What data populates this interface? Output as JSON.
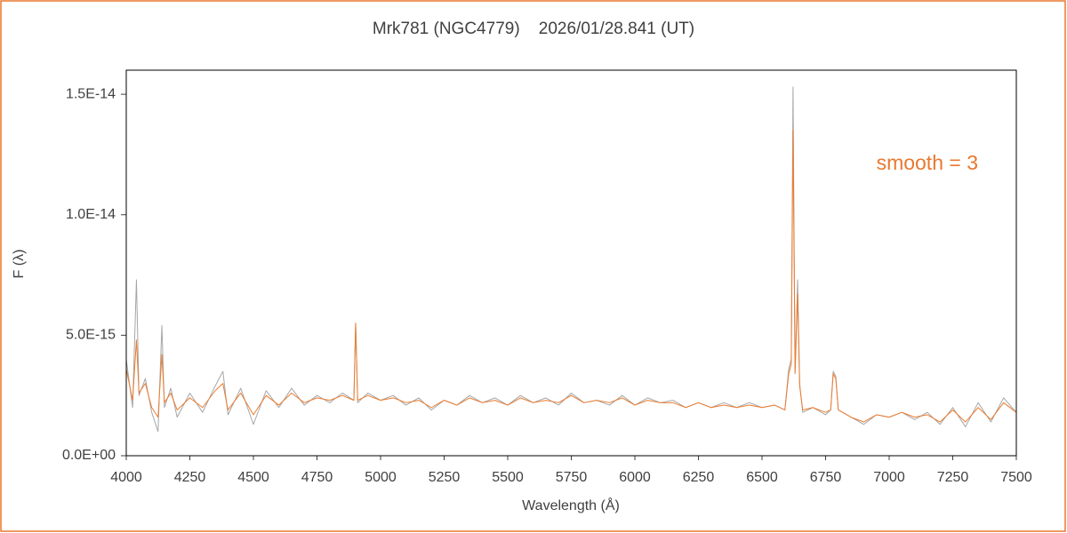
{
  "chart_data": {
    "type": "line",
    "title": "Mrk781 (NGC4779)    2026/01/28.841 (UT)",
    "x_label": "Wavelength (Å)",
    "y_label": "F (λ)",
    "annotation": "smooth = 3",
    "annotation_color": "#e8782f",
    "x": [
      4000,
      4025,
      4040,
      4050,
      4075,
      4100,
      4125,
      4140,
      4150,
      4175,
      4200,
      4250,
      4300,
      4350,
      4380,
      4400,
      4450,
      4500,
      4550,
      4600,
      4650,
      4700,
      4750,
      4800,
      4850,
      4895,
      4902,
      4910,
      4950,
      5000,
      5050,
      5100,
      5150,
      5200,
      5250,
      5300,
      5350,
      5400,
      5450,
      5500,
      5550,
      5600,
      5650,
      5700,
      5750,
      5800,
      5850,
      5900,
      5950,
      6000,
      6050,
      6100,
      6150,
      6200,
      6250,
      6300,
      6350,
      6400,
      6450,
      6500,
      6550,
      6590,
      6605,
      6615,
      6622,
      6630,
      6640,
      6648,
      6660,
      6700,
      6750,
      6770,
      6780,
      6790,
      6800,
      6850,
      6900,
      6950,
      7000,
      7050,
      7100,
      7150,
      7200,
      7250,
      7300,
      7350,
      7400,
      7450,
      7500
    ],
    "series": [
      {
        "color": "#a6a6a6",
        "values": [
          4e-15,
          2e-15,
          7.3e-15,
          2.5e-15,
          3.2e-15,
          1.8e-15,
          1e-15,
          5.4e-15,
          2e-15,
          2.8e-15,
          1.6e-15,
          2.6e-15,
          1.8e-15,
          2.9e-15,
          3.5e-15,
          1.7e-15,
          2.8e-15,
          1.3e-15,
          2.7e-15,
          2e-15,
          2.8e-15,
          2.1e-15,
          2.5e-15,
          2.2e-15,
          2.6e-15,
          2.3e-15,
          5.5e-15,
          2.2e-15,
          2.6e-15,
          2.3e-15,
          2.5e-15,
          2.1e-15,
          2.4e-15,
          1.9e-15,
          2.3e-15,
          2.1e-15,
          2.5e-15,
          2.2e-15,
          2.4e-15,
          2.1e-15,
          2.5e-15,
          2.2e-15,
          2.4e-15,
          2.1e-15,
          2.6e-15,
          2.2e-15,
          2.3e-15,
          2.1e-15,
          2.5e-15,
          2.1e-15,
          2.4e-15,
          2.2e-15,
          2.3e-15,
          2e-15,
          2.2e-15,
          2e-15,
          2.2e-15,
          2e-15,
          2.2e-15,
          2e-15,
          2.1e-15,
          1.9e-15,
          3.6e-15,
          4e-15,
          1.53e-14,
          3.5e-15,
          7.3e-15,
          3e-15,
          1.8e-15,
          2e-15,
          1.7e-15,
          1.9e-15,
          3.5e-15,
          3.3e-15,
          1.9e-15,
          1.6e-15,
          1.3e-15,
          1.7e-15,
          1.6e-15,
          1.8e-15,
          1.5e-15,
          1.8e-15,
          1.3e-15,
          2e-15,
          1.2e-15,
          2.2e-15,
          1.4e-15,
          2.4e-15,
          1.8e-15
        ]
      },
      {
        "color": "#ed7d31",
        "values": [
          3.6e-15,
          2.3e-15,
          4.8e-15,
          2.6e-15,
          3e-15,
          2e-15,
          1.6e-15,
          4.2e-15,
          2.2e-15,
          2.6e-15,
          1.9e-15,
          2.4e-15,
          2e-15,
          2.7e-15,
          3e-15,
          1.9e-15,
          2.6e-15,
          1.7e-15,
          2.5e-15,
          2.1e-15,
          2.6e-15,
          2.2e-15,
          2.4e-15,
          2.3e-15,
          2.5e-15,
          2.3e-15,
          5.5e-15,
          2.3e-15,
          2.5e-15,
          2.3e-15,
          2.4e-15,
          2.2e-15,
          2.3e-15,
          2e-15,
          2.3e-15,
          2.1e-15,
          2.4e-15,
          2.2e-15,
          2.3e-15,
          2.1e-15,
          2.4e-15,
          2.2e-15,
          2.3e-15,
          2.2e-15,
          2.5e-15,
          2.2e-15,
          2.3e-15,
          2.2e-15,
          2.4e-15,
          2.1e-15,
          2.3e-15,
          2.2e-15,
          2.2e-15,
          2e-15,
          2.2e-15,
          2e-15,
          2.1e-15,
          2e-15,
          2.1e-15,
          2e-15,
          2.1e-15,
          1.9e-15,
          3.4e-15,
          3.8e-15,
          1.35e-14,
          3.4e-15,
          6.7e-15,
          2.9e-15,
          1.9e-15,
          2e-15,
          1.8e-15,
          1.9e-15,
          3.4e-15,
          3.2e-15,
          1.9e-15,
          1.6e-15,
          1.4e-15,
          1.7e-15,
          1.6e-15,
          1.8e-15,
          1.6e-15,
          1.7e-15,
          1.4e-15,
          1.9e-15,
          1.4e-15,
          2e-15,
          1.5e-15,
          2.2e-15,
          1.8e-15
        ]
      }
    ],
    "xlim": [
      4000,
      7500
    ],
    "xticks": [
      4000,
      4250,
      4500,
      4750,
      5000,
      5250,
      5500,
      5750,
      6000,
      6250,
      6500,
      6750,
      7000,
      7250,
      7500
    ],
    "ylim": [
      0,
      1.6e-14
    ],
    "yticks": [
      {
        "value": 0,
        "label": "0.0E+00"
      },
      {
        "value": 5e-15,
        "label": "5.0E-15"
      },
      {
        "value": 1e-14,
        "label": "1.0E-14"
      },
      {
        "value": 1.5e-14,
        "label": "1.5E-14"
      }
    ],
    "grid": false
  }
}
